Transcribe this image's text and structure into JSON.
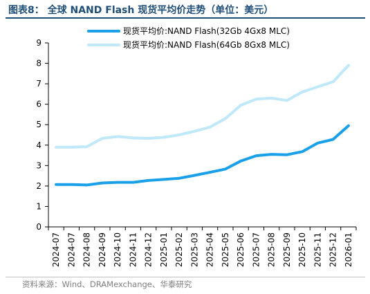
{
  "figure": {
    "title": "图表8： 全球 NAND Flash 现货平均价走势（单位：美元）",
    "source": "资料来源：Wind、DRAMexchange、华泰研究"
  },
  "chart_data": {
    "type": "line",
    "xlabel": "",
    "ylabel": "",
    "ylim": [
      0,
      9
    ],
    "yticks": [
      0,
      1,
      2,
      3,
      4,
      5,
      6,
      7,
      8,
      9
    ],
    "categories": [
      "2024-07",
      "2024-07",
      "2024-08",
      "2024-09",
      "2024-10",
      "2024-11",
      "2024-12",
      "2025-01",
      "2025-02",
      "2025-03",
      "2025-04",
      "2025-05",
      "2025-06",
      "2025-07",
      "2025-08",
      "2025-09",
      "2025-10",
      "2025-11",
      "2025-12",
      "2026-01"
    ],
    "legend_position": "top-center",
    "grid": false,
    "series": [
      {
        "name": "现货平均价:NAND Flash(32Gb 4Gx8 MLC)",
        "color": "#1aa0e8",
        "values": [
          2.07,
          2.07,
          2.05,
          2.15,
          2.18,
          2.18,
          2.27,
          2.32,
          2.38,
          2.52,
          2.67,
          2.83,
          3.22,
          3.48,
          3.55,
          3.53,
          3.68,
          4.1,
          4.28,
          4.95
        ]
      },
      {
        "name": "现货平均价:NAND Flash(64Gb 8Gx8 MLC)",
        "color": "#bfe8f8",
        "values": [
          3.9,
          3.9,
          3.92,
          4.33,
          4.42,
          4.35,
          4.33,
          4.38,
          4.5,
          4.68,
          4.88,
          5.3,
          5.95,
          6.25,
          6.3,
          6.18,
          6.6,
          6.85,
          7.1,
          7.9
        ]
      }
    ]
  }
}
